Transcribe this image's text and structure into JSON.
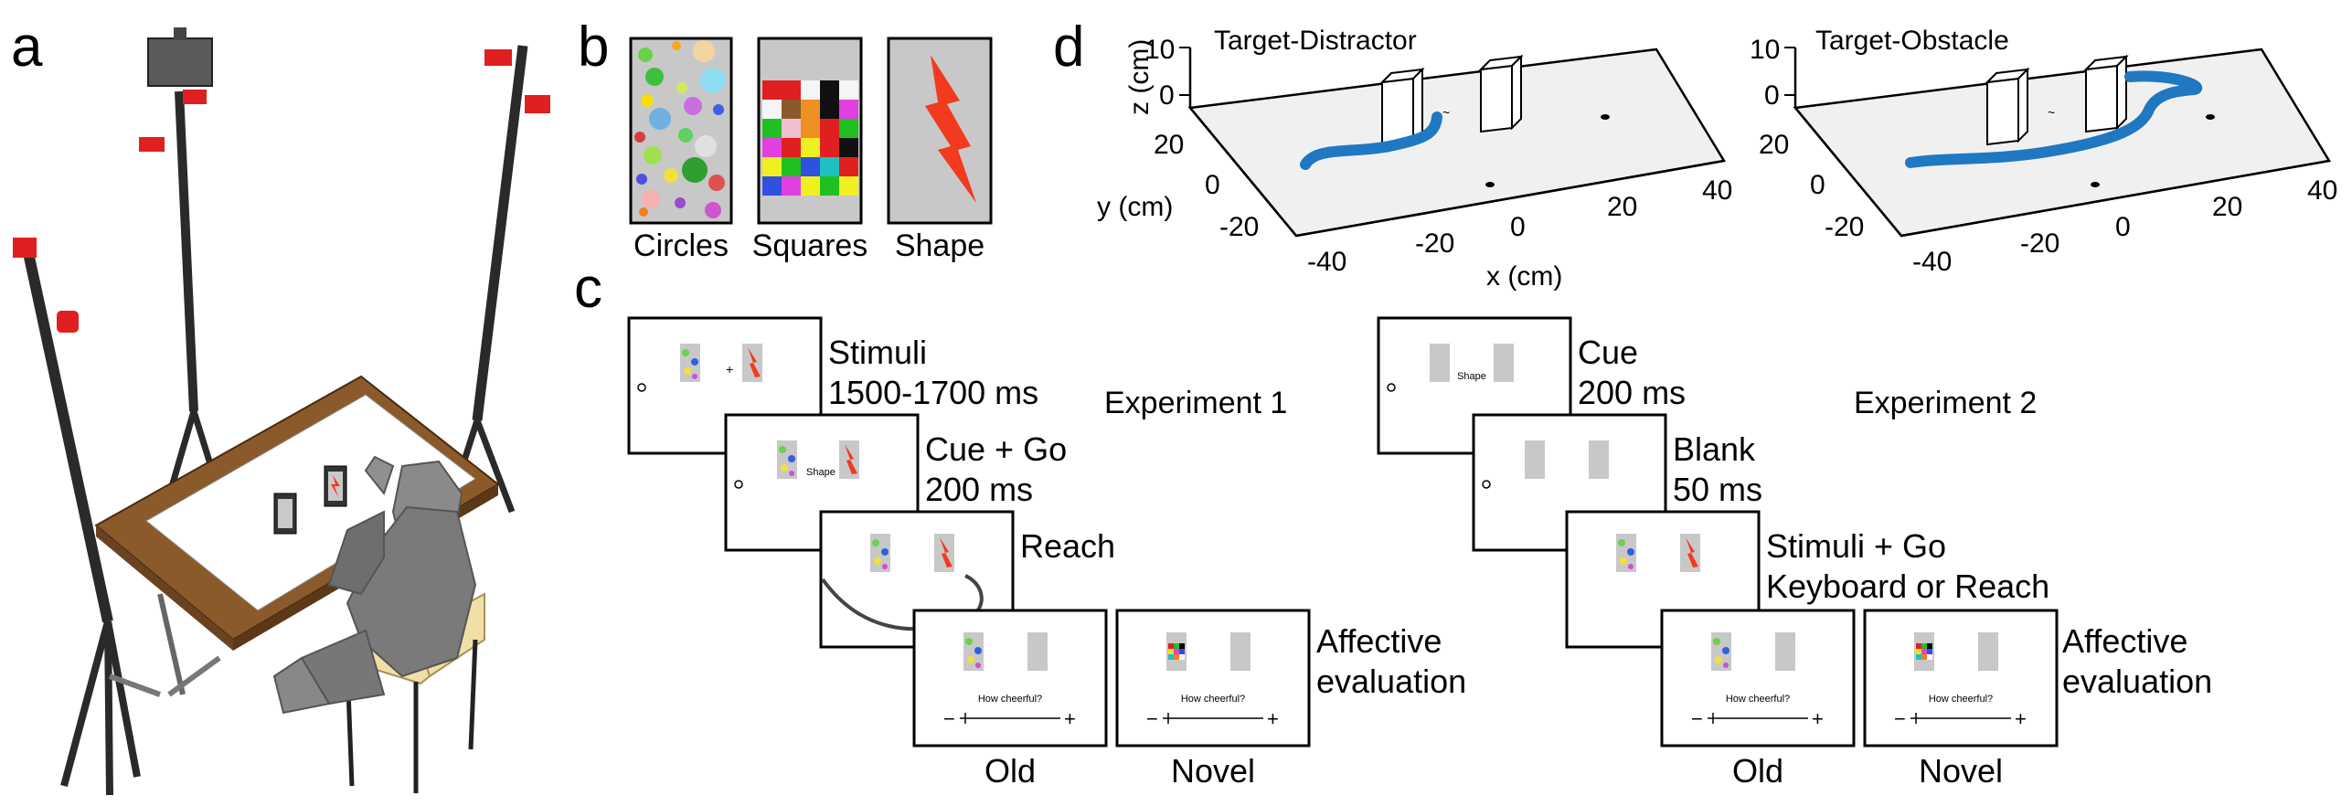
{
  "panels": {
    "a": "a",
    "b": "b",
    "c": "c",
    "d": "d"
  },
  "panel_b": {
    "labels": [
      "Circles",
      "Squares",
      "Shape"
    ]
  },
  "panel_c": {
    "exp1_title": "Experiment 1",
    "exp2_title": "Experiment 2",
    "exp1": {
      "stimuli_label_1": "Stimuli",
      "stimuli_label_2": "1500-1700 ms",
      "cue_label_1": "Cue + Go",
      "cue_label_2": "200 ms",
      "cue_screen_text": "Shape",
      "reach_label": "Reach",
      "affective_1": "Affective",
      "affective_2": "evaluation",
      "question": "How cheerful?",
      "minus": "−",
      "plus": "+",
      "old_label": "Old",
      "novel_label": "Novel"
    },
    "exp2": {
      "cue_label_1": "Cue",
      "cue_label_2": "200 ms",
      "cue_screen_text": "Shape",
      "blank_label_1": "Blank",
      "blank_label_2": "50 ms",
      "stim_label_1": "Stimuli + Go",
      "stim_label_2": "Keyboard or Reach",
      "affective_1": "Affective",
      "affective_2": "evaluation",
      "question": "How cheerful?",
      "minus": "−",
      "plus": "+",
      "old_label": "Old",
      "novel_label": "Novel"
    }
  },
  "panel_d": {
    "plots": [
      {
        "title": "Target-Distractor"
      },
      {
        "title": "Target-Obstacle"
      }
    ],
    "z_label": "z (cm)",
    "y_label": "y (cm)",
    "x_label": "x (cm)",
    "z_ticks": [
      "10",
      "0"
    ],
    "y_ticks": [
      "20",
      "0",
      "-20"
    ],
    "x_ticks": [
      "-40",
      "-20",
      "0",
      "20",
      "40"
    ],
    "trajectory_color": "#1f78c1"
  },
  "colors": {
    "stimulus_red": "#f23a1e",
    "stimulus_gray": "#c8c8c8",
    "camera_red": "#e02020",
    "table_wood": "#8b5a2b"
  }
}
